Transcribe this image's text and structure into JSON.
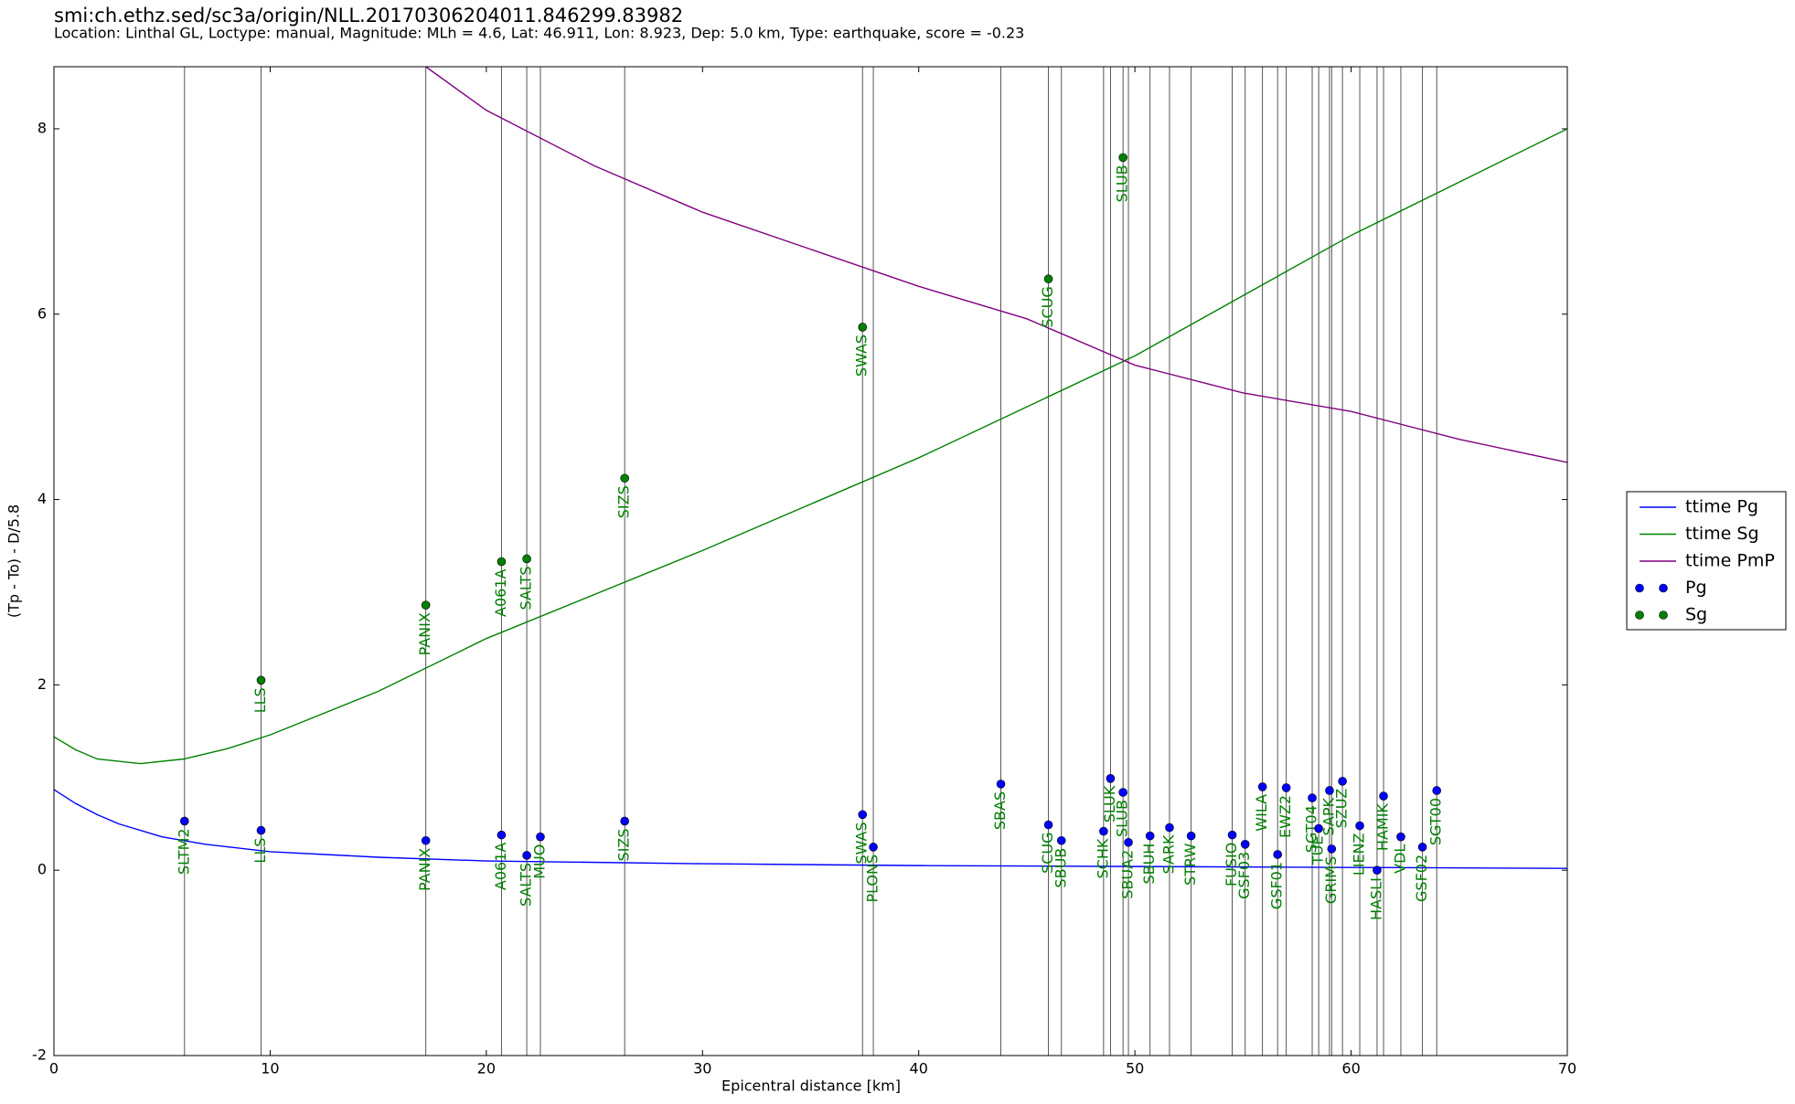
{
  "chart_data": {
    "type": "scatter",
    "title": "smi:ch.ethz.sed/sc3a/origin/NLL.20170306204011.846299.83982",
    "subtitle": "Location: Linthal GL, Loctype: manual, Magnitude: MLh = 4.6, Lat: 46.911, Lon: 8.923, Dep: 5.0 km, Type: earthquake, score = -0.23",
    "x_label": "Epicentral distance [km]",
    "y_label": "(Tp - To) - D/5.8",
    "xlim": [
      0,
      70
    ],
    "ylim": [
      -2,
      8.67
    ],
    "xticks": [
      0,
      10,
      20,
      30,
      40,
      50,
      60,
      70
    ],
    "yticks": [
      -2,
      0,
      2,
      4,
      6,
      8
    ],
    "legend": "right",
    "series": [
      {
        "name": "ttime Pg",
        "kind": "line",
        "color": "#0000ff",
        "x": [
          0,
          1,
          2,
          3,
          5,
          7,
          10,
          15,
          20,
          30,
          40,
          50,
          60,
          70
        ],
        "values": [
          0.87,
          0.72,
          0.6,
          0.5,
          0.36,
          0.28,
          0.2,
          0.14,
          0.1,
          0.07,
          0.05,
          0.04,
          0.03,
          0.02
        ]
      },
      {
        "name": "ttime Sg",
        "kind": "line",
        "color": "#008000",
        "x": [
          0,
          1,
          2,
          4,
          6,
          8,
          10,
          15,
          20,
          30,
          40,
          50,
          60,
          70
        ],
        "values": [
          1.44,
          1.3,
          1.2,
          1.15,
          1.2,
          1.31,
          1.46,
          1.93,
          2.5,
          3.45,
          4.45,
          5.55,
          6.85,
          8.0
        ]
      },
      {
        "name": "ttime PmP",
        "kind": "line",
        "color": "#800080",
        "x": [
          17.2,
          20,
          25,
          30,
          35,
          40,
          45,
          50,
          55,
          60,
          65,
          70
        ],
        "values": [
          8.67,
          8.2,
          7.6,
          7.1,
          6.7,
          6.3,
          5.95,
          5.45,
          5.15,
          4.95,
          4.65,
          4.4
        ]
      },
      {
        "name": "Pg",
        "kind": "points",
        "color": "#0000ff",
        "labels": [
          "SLTM2",
          "LLS",
          "PANIX",
          "A061A",
          "SALTS",
          "MUO",
          "SIZS",
          "SWAS",
          "PLONS",
          "SBAS",
          "SCUG",
          "SBUB",
          "SCHK",
          "SLUK",
          "SLUB",
          "SBUA2",
          "SBUH",
          "SARK",
          "STRW",
          "FUSIO",
          "GSF03",
          "WILA",
          "GSF01",
          "EWZ2",
          "SGT04",
          "TUE",
          "SAPK",
          "GRIMS",
          "SZUZ",
          "LIENZ",
          "HASLI",
          "HAMIK",
          "VDL",
          "GSF02",
          "SGT00"
        ],
        "x": [
          6.04,
          9.58,
          17.2,
          20.7,
          21.87,
          22.5,
          26.4,
          37.4,
          37.9,
          43.8,
          46.0,
          46.6,
          48.55,
          48.87,
          49.45,
          49.7,
          50.7,
          51.6,
          52.6,
          54.5,
          55.1,
          55.9,
          56.6,
          57.0,
          58.2,
          58.5,
          59.0,
          59.1,
          59.6,
          60.4,
          61.2,
          61.5,
          62.3,
          63.3,
          63.96
        ],
        "values": [
          0.53,
          0.43,
          0.32,
          0.38,
          0.16,
          0.36,
          0.53,
          0.6,
          0.25,
          0.93,
          0.49,
          0.32,
          0.42,
          0.99,
          0.84,
          0.3,
          0.37,
          0.46,
          0.37,
          0.38,
          0.28,
          0.9,
          0.17,
          0.89,
          0.78,
          0.45,
          0.86,
          0.23,
          0.96,
          0.48,
          0.0,
          0.8,
          0.36,
          0.25,
          0.86
        ]
      },
      {
        "name": "Sg",
        "kind": "points",
        "color": "#008000",
        "labels": [
          "LLS",
          "PANIX",
          "A061A",
          "SALTS",
          "SIZS",
          "SWAS",
          "SCUG",
          "SLUB"
        ],
        "x": [
          9.58,
          17.2,
          20.7,
          21.87,
          26.4,
          37.4,
          46.0,
          49.45
        ],
        "values": [
          2.05,
          2.86,
          3.33,
          3.36,
          4.23,
          5.86,
          6.38,
          7.69
        ]
      }
    ]
  }
}
